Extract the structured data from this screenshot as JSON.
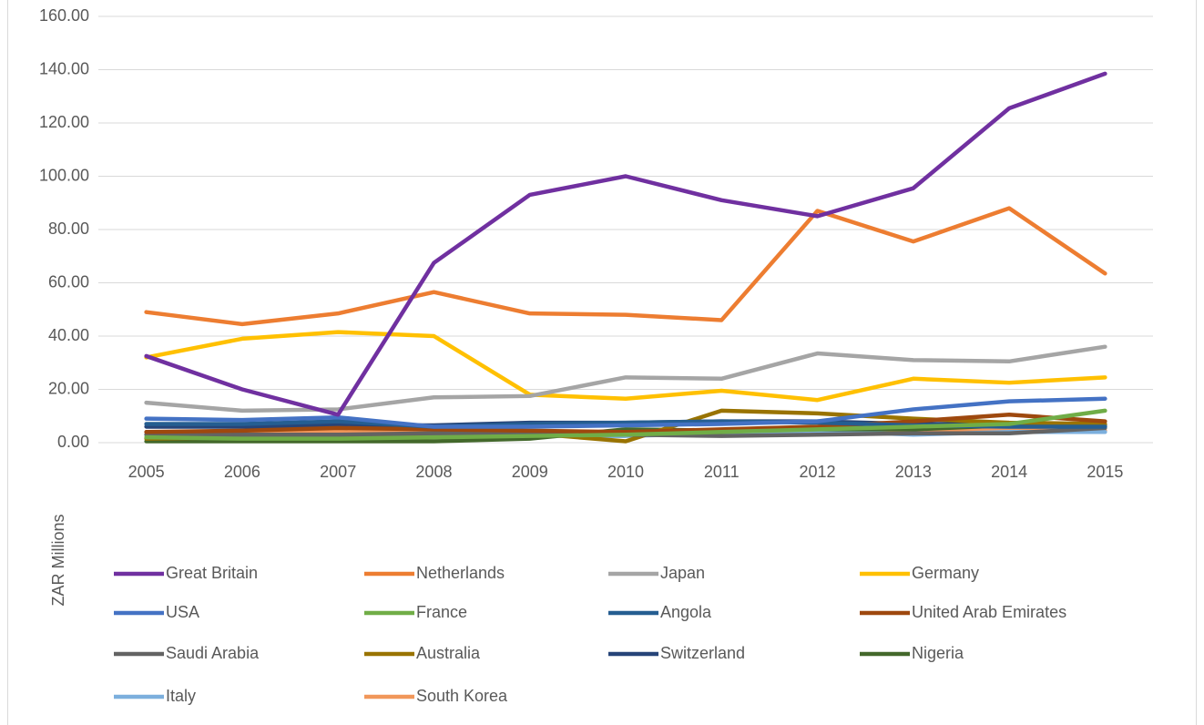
{
  "chart_data": {
    "type": "line",
    "y_label": "ZAR Millions",
    "categories": [
      "2005",
      "2006",
      "2007",
      "2008",
      "2009",
      "2010",
      "2011",
      "2012",
      "2013",
      "2014",
      "2015"
    ],
    "ylim": [
      0,
      160
    ],
    "yticks": [
      {
        "value": 0,
        "label": "0.00"
      },
      {
        "value": 20,
        "label": "20.00"
      },
      {
        "value": 40,
        "label": "40.00"
      },
      {
        "value": 60,
        "label": "60.00"
      },
      {
        "value": 80,
        "label": "80.00"
      },
      {
        "value": 100,
        "label": "100.00"
      },
      {
        "value": 120,
        "label": "120.00"
      },
      {
        "value": 140,
        "label": "140.00"
      },
      {
        "value": 160,
        "label": "160.00"
      }
    ],
    "grid": true,
    "legend": "bottom",
    "series": [
      {
        "name": "Great Britain",
        "color": "#7030a0",
        "values": [
          32.5,
          20,
          10.5,
          67.5,
          93,
          100,
          91,
          85,
          95.5,
          125.5,
          138.5
        ]
      },
      {
        "name": "Netherlands",
        "color": "#ed7d31",
        "values": [
          49,
          44.5,
          48.5,
          56.5,
          48.5,
          48,
          46,
          87,
          75.5,
          88,
          63.5
        ]
      },
      {
        "name": "Japan",
        "color": "#a5a5a5",
        "values": [
          15,
          12,
          12.5,
          17,
          17.5,
          24.5,
          24,
          33.5,
          31,
          30.5,
          36
        ]
      },
      {
        "name": "Germany",
        "color": "#ffc000",
        "values": [
          32,
          39,
          41.5,
          40,
          18,
          16.5,
          19.5,
          16,
          24,
          22.5,
          24.5
        ]
      },
      {
        "name": "USA",
        "color": "#4472c4",
        "values": [
          9,
          8.5,
          9.5,
          6,
          6,
          6.5,
          7,
          8,
          12.5,
          15.5,
          16.5
        ]
      },
      {
        "name": "France",
        "color": "#70ad47",
        "values": [
          2,
          1.5,
          1.5,
          2,
          2.5,
          3,
          4,
          5,
          6,
          7,
          12
        ]
      },
      {
        "name": "Angola",
        "color": "#255e91",
        "values": [
          7,
          7,
          8,
          6,
          7,
          7.5,
          8,
          7.5,
          6.5,
          6,
          6
        ]
      },
      {
        "name": "United Arab Emirates",
        "color": "#9e480e",
        "values": [
          4,
          4.5,
          5.5,
          5,
          4.5,
          4,
          5,
          6,
          8,
          10.5,
          8
        ]
      },
      {
        "name": "Saudi Arabia",
        "color": "#636363",
        "values": [
          3,
          3,
          3,
          3.5,
          3.5,
          3,
          2.5,
          3,
          3.5,
          3.5,
          5.5
        ]
      },
      {
        "name": "Australia",
        "color": "#997300",
        "values": [
          1.5,
          2,
          2,
          3,
          3.5,
          0.5,
          12,
          11,
          9,
          7.5,
          7
        ]
      },
      {
        "name": "Switzerland",
        "color": "#264478",
        "values": [
          6,
          6,
          6.5,
          6.5,
          7.5,
          7.5,
          8,
          8,
          7,
          7,
          6.5
        ]
      },
      {
        "name": "Nigeria",
        "color": "#43682b",
        "values": [
          0.5,
          0.5,
          0.5,
          0.5,
          1.5,
          5,
          4.5,
          5,
          5,
          6.5,
          6
        ]
      },
      {
        "name": "Italy",
        "color": "#7cafdd",
        "values": [
          3,
          3,
          3,
          3,
          2.5,
          2.5,
          3.5,
          4.5,
          3,
          4,
          4
        ]
      },
      {
        "name": "South Korea",
        "color": "#f1975a",
        "values": [
          4,
          4,
          4,
          4.5,
          4,
          3.5,
          4.5,
          5,
          4.5,
          5,
          4.5
        ]
      }
    ]
  }
}
